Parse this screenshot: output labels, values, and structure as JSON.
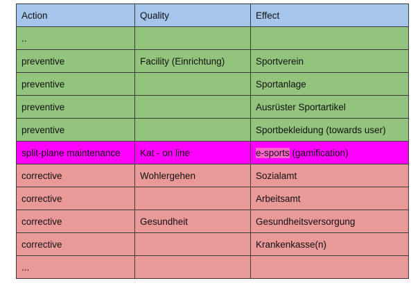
{
  "header": [
    "Action",
    "Quality",
    "Effect"
  ],
  "rows": [
    {
      "action": "..",
      "quality": "",
      "effect": "",
      "color": "#93c47d"
    },
    {
      "action": "preventive",
      "quality": "Facility (Einrichtung)",
      "effect": "Sportverein",
      "color": "#93c47d"
    },
    {
      "action": "preventive",
      "quality": "",
      "effect": "Sportanlage",
      "color": "#93c47d"
    },
    {
      "action": "preventive",
      "quality": "",
      "effect": "Ausrüster Sportartikel",
      "color": "#93c47d"
    },
    {
      "action": "preventive",
      "quality": "",
      "effect": "Sportbekleidung (towards user)",
      "color": "#93c47d"
    },
    {
      "action": "split-plane maintenance",
      "quality": "Kat - on line",
      "effect_highlight": "e-sports",
      "effect_rest": " (gamification)",
      "color": "#ff00ff"
    },
    {
      "action": "corrective",
      "quality": "Wohlergehen",
      "effect": "Sozialamt",
      "color": "#ea9999"
    },
    {
      "action": "corrective",
      "quality": "",
      "effect": "Arbeitsamt",
      "color": "#ea9999"
    },
    {
      "action": "corrective",
      "quality": "Gesundheit",
      "effect": "Gesundheitsversorgung",
      "color": "#ea9999"
    },
    {
      "action": "corrective",
      "quality": "",
      "effect": "Krankenkasse(n)",
      "color": "#ea9999"
    },
    {
      "action": "...",
      "quality": "",
      "effect": "",
      "color": "#ea9999"
    }
  ]
}
